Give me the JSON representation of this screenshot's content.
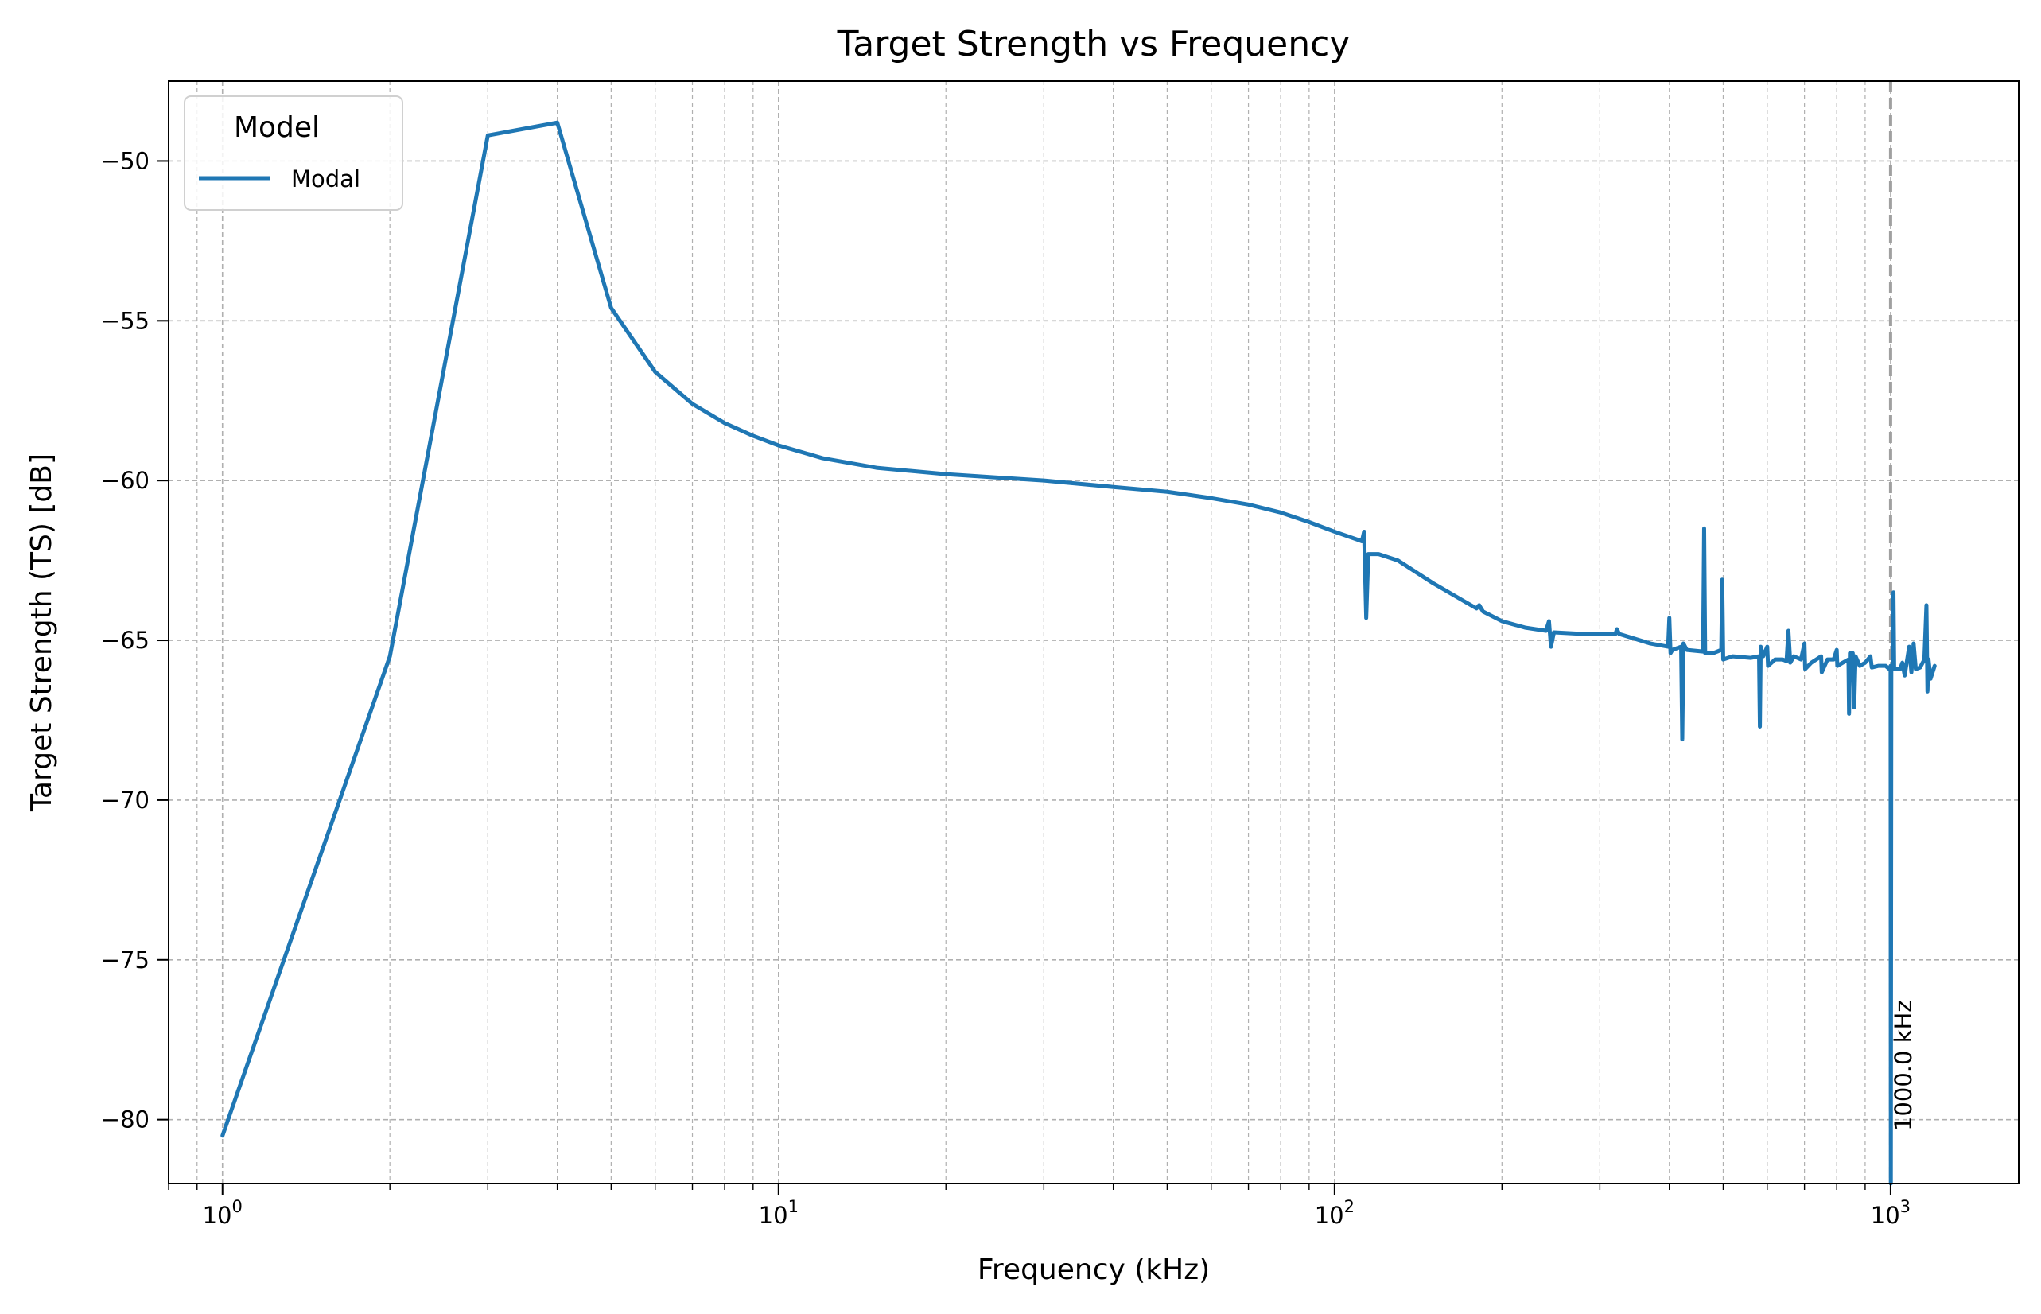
{
  "chart_data": {
    "type": "line",
    "title": "Target Strength vs Frequency",
    "xlabel": "Frequency (kHz)",
    "ylabel": "Target Strength (TS) [dB]",
    "xscale": "log",
    "xlim": [
      0.8,
      1700
    ],
    "ylim": [
      -82,
      -47.5
    ],
    "grid": true,
    "legend": {
      "title": "Model",
      "position": "top-left"
    },
    "x_ticks": [
      {
        "value": 1,
        "base": "10",
        "exp": "0"
      },
      {
        "value": 10,
        "base": "10",
        "exp": "1"
      },
      {
        "value": 100,
        "base": "10",
        "exp": "2"
      },
      {
        "value": 1000,
        "base": "10",
        "exp": "3"
      }
    ],
    "y_ticks": [
      {
        "value": -80,
        "label": "−80"
      },
      {
        "value": -75,
        "label": "−75"
      },
      {
        "value": -70,
        "label": "−70"
      },
      {
        "value": -65,
        "label": "−65"
      },
      {
        "value": -60,
        "label": "−60"
      },
      {
        "value": -55,
        "label": "−55"
      },
      {
        "value": -50,
        "label": "−50"
      }
    ],
    "series": [
      {
        "name": "Modal",
        "color": "#1f77b4",
        "points": [
          [
            1,
            -80.5
          ],
          [
            2,
            -65.5
          ],
          [
            3,
            -49.2
          ],
          [
            4,
            -48.8
          ],
          [
            5,
            -54.6
          ],
          [
            6,
            -56.6
          ],
          [
            7,
            -57.6
          ],
          [
            8,
            -58.2
          ],
          [
            9,
            -58.6
          ],
          [
            10,
            -58.9
          ],
          [
            12,
            -59.3
          ],
          [
            15,
            -59.6
          ],
          [
            20,
            -59.8
          ],
          [
            30,
            -60.0
          ],
          [
            40,
            -60.2
          ],
          [
            50,
            -60.35
          ],
          [
            60,
            -60.55
          ],
          [
            70,
            -60.75
          ],
          [
            80,
            -61.0
          ],
          [
            90,
            -61.3
          ],
          [
            100,
            -61.6
          ],
          [
            110,
            -61.85
          ],
          [
            112,
            -61.9
          ],
          [
            113,
            -61.6
          ],
          [
            114,
            -64.3
          ],
          [
            115,
            -62.3
          ],
          [
            120,
            -62.3
          ],
          [
            130,
            -62.5
          ],
          [
            150,
            -63.2
          ],
          [
            180,
            -64.0
          ],
          [
            182,
            -63.9
          ],
          [
            185,
            -64.1
          ],
          [
            200,
            -64.4
          ],
          [
            220,
            -64.6
          ],
          [
            240,
            -64.7
          ],
          [
            243,
            -64.4
          ],
          [
            245,
            -65.2
          ],
          [
            248,
            -64.75
          ],
          [
            280,
            -64.8
          ],
          [
            320,
            -64.8
          ],
          [
            322,
            -64.65
          ],
          [
            325,
            -64.8
          ],
          [
            370,
            -65.1
          ],
          [
            398,
            -65.2
          ],
          [
            400,
            -64.3
          ],
          [
            402,
            -65.4
          ],
          [
            405,
            -65.3
          ],
          [
            420,
            -65.2
          ],
          [
            422,
            -68.1
          ],
          [
            424,
            -65.1
          ],
          [
            430,
            -65.3
          ],
          [
            460,
            -65.35
          ],
          [
            462,
            -61.5
          ],
          [
            464,
            -65.4
          ],
          [
            480,
            -65.4
          ],
          [
            496,
            -65.3
          ],
          [
            498,
            -63.1
          ],
          [
            500,
            -65.6
          ],
          [
            520,
            -65.5
          ],
          [
            560,
            -65.55
          ],
          [
            580,
            -65.5
          ],
          [
            582,
            -67.7
          ],
          [
            584,
            -65.2
          ],
          [
            590,
            -65.5
          ],
          [
            600,
            -65.2
          ],
          [
            602,
            -65.8
          ],
          [
            620,
            -65.6
          ],
          [
            640,
            -65.6
          ],
          [
            650,
            -65.65
          ],
          [
            655,
            -64.7
          ],
          [
            660,
            -65.7
          ],
          [
            670,
            -65.5
          ],
          [
            690,
            -65.6
          ],
          [
            700,
            -65.1
          ],
          [
            702,
            -65.9
          ],
          [
            720,
            -65.7
          ],
          [
            750,
            -65.5
          ],
          [
            752,
            -66.0
          ],
          [
            770,
            -65.6
          ],
          [
            790,
            -65.6
          ],
          [
            800,
            -65.3
          ],
          [
            802,
            -65.8
          ],
          [
            820,
            -65.7
          ],
          [
            840,
            -65.6
          ],
          [
            842,
            -67.3
          ],
          [
            845,
            -65.4
          ],
          [
            855,
            -65.4
          ],
          [
            860,
            -67.1
          ],
          [
            865,
            -65.5
          ],
          [
            880,
            -65.8
          ],
          [
            900,
            -65.7
          ],
          [
            920,
            -65.5
          ],
          [
            925,
            -65.85
          ],
          [
            950,
            -65.8
          ],
          [
            980,
            -65.8
          ],
          [
            995,
            -65.9
          ],
          [
            1000,
            -65.8
          ],
          [
            1001,
            -82.0
          ],
          [
            1003,
            -65.8
          ],
          [
            1010,
            -65.8
          ],
          [
            1012,
            -63.5
          ],
          [
            1015,
            -65.9
          ],
          [
            1040,
            -65.9
          ],
          [
            1050,
            -65.7
          ],
          [
            1060,
            -66.1
          ],
          [
            1080,
            -65.2
          ],
          [
            1090,
            -66.0
          ],
          [
            1100,
            -65.1
          ],
          [
            1110,
            -65.9
          ],
          [
            1130,
            -65.85
          ],
          [
            1150,
            -65.6
          ],
          [
            1160,
            -63.9
          ],
          [
            1165,
            -66.6
          ],
          [
            1170,
            -65.6
          ],
          [
            1180,
            -66.2
          ],
          [
            1200,
            -65.8
          ]
        ]
      }
    ],
    "vline": {
      "x": 1000,
      "color": "#a0a0a0",
      "label": "1000.0 kHz"
    }
  }
}
